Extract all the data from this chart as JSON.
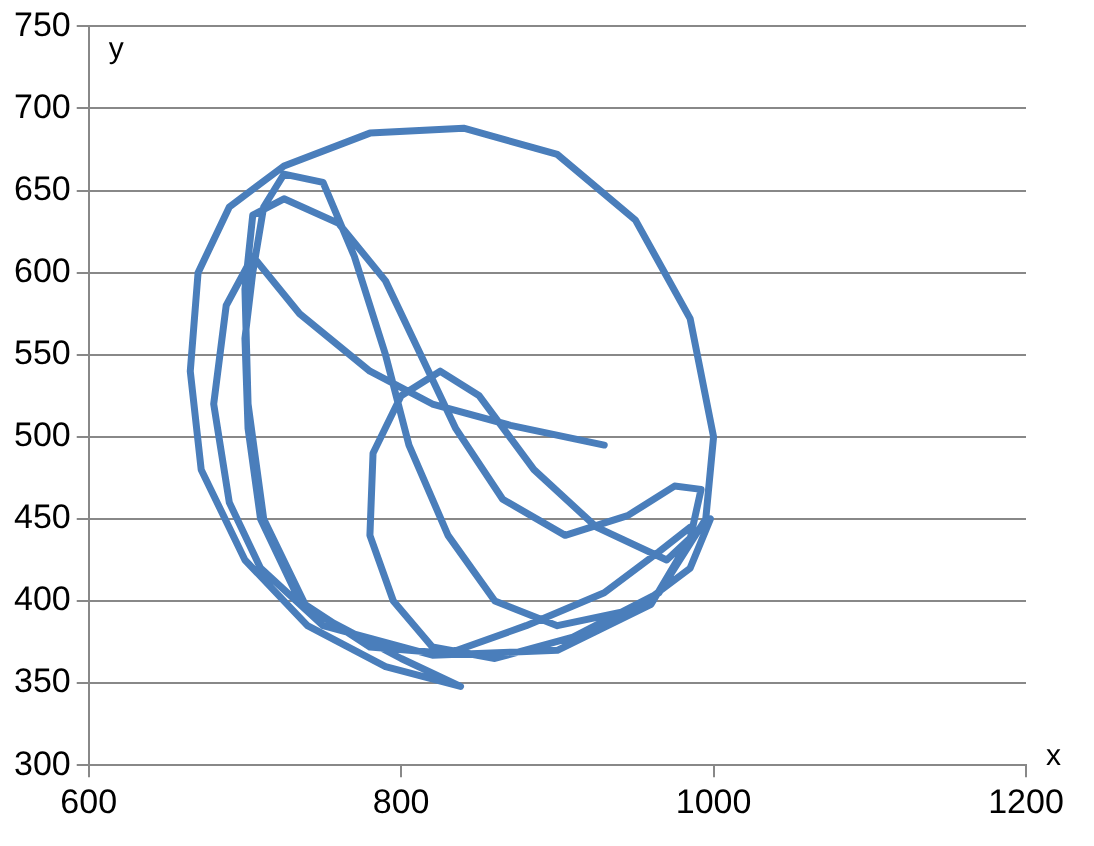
{
  "chart_data": {
    "type": "line",
    "xlabel": "x",
    "ylabel": "y",
    "xlim": [
      600,
      1200
    ],
    "xticks": [
      600,
      800,
      1000,
      1200
    ],
    "ylim": [
      300,
      750
    ],
    "yticks": [
      300,
      350,
      400,
      450,
      500,
      550,
      600,
      650,
      700,
      750
    ],
    "grid": "y",
    "marker": "none",
    "line_style": "solid",
    "legend": false,
    "series": [
      {
        "color": "#4a7ebb",
        "x": [
          930,
          870,
          820,
          780,
          735,
          705,
          688,
          680,
          690,
          710,
          750,
          820,
          900,
          960,
          985,
          992,
          975,
          945,
          905,
          865,
          835,
          810,
          790,
          760,
          725,
          705,
          700,
          702,
          712,
          740,
          800,
          838,
          790,
          740,
          700,
          672,
          665,
          670,
          690,
          725,
          780,
          840,
          900,
          950,
          985,
          1000,
          995,
          965,
          910,
          860,
          820,
          795,
          780,
          782,
          800,
          825,
          850,
          885,
          925,
          970,
          998,
          985,
          950,
          900,
          860,
          830,
          805,
          790,
          770,
          750,
          725,
          712,
          705,
          700,
          702,
          710,
          735,
          780,
          830,
          880,
          930,
          965,
          985
        ],
        "values": [
          495,
          507,
          520,
          540,
          575,
          610,
          580,
          520,
          460,
          420,
          385,
          367,
          370,
          398,
          438,
          468,
          470,
          452,
          440,
          462,
          505,
          555,
          595,
          630,
          645,
          635,
          590,
          520,
          450,
          395,
          365,
          348,
          360,
          385,
          425,
          480,
          540,
          600,
          640,
          665,
          685,
          688,
          672,
          632,
          572,
          500,
          450,
          405,
          378,
          365,
          372,
          400,
          440,
          490,
          525,
          540,
          525,
          480,
          445,
          425,
          450,
          420,
          395,
          385,
          400,
          440,
          495,
          550,
          610,
          655,
          660,
          640,
          600,
          560,
          505,
          450,
          400,
          372,
          368,
          385,
          405,
          430,
          445
        ]
      }
    ]
  }
}
